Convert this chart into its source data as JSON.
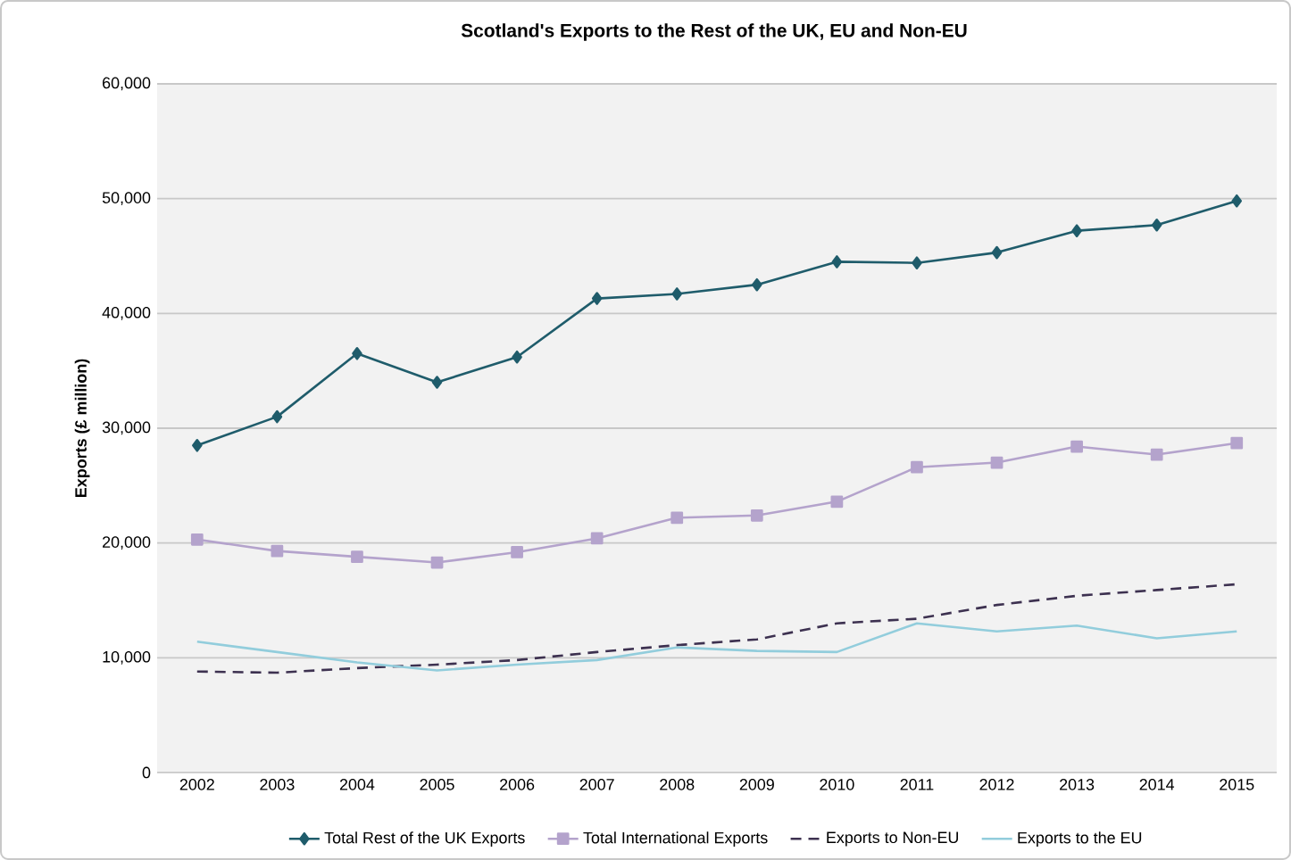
{
  "chart_data": {
    "type": "line",
    "title": "Scotland's Exports to the Rest of the UK, EU and Non-EU",
    "ylabel": "Exports (£ million)",
    "categories": [
      "2002",
      "2003",
      "2004",
      "2005",
      "2006",
      "2007",
      "2008",
      "2009",
      "2010",
      "2011",
      "2012",
      "2013",
      "2014",
      "2015"
    ],
    "series": [
      {
        "name": "Total Rest of the UK Exports",
        "color": "#1f5c6b",
        "marker": "diamond",
        "line_style": "solid",
        "values": [
          28500,
          31000,
          36500,
          34000,
          36200,
          41300,
          41700,
          42500,
          44500,
          44400,
          45300,
          47200,
          47700,
          49800
        ]
      },
      {
        "name": "Total International Exports",
        "color": "#b4a3cc",
        "marker": "square",
        "line_style": "solid",
        "values": [
          20300,
          19300,
          18800,
          18300,
          19200,
          20400,
          22200,
          22400,
          23600,
          26600,
          27000,
          28400,
          27700,
          28700
        ]
      },
      {
        "name": "Exports to Non-EU",
        "color": "#3d3150",
        "marker": "none",
        "line_style": "dashed",
        "values": [
          8800,
          8700,
          9100,
          9400,
          9800,
          10500,
          11100,
          11600,
          13000,
          13400,
          14600,
          15400,
          15900,
          16400
        ]
      },
      {
        "name": "Exports to the EU",
        "color": "#92cddc",
        "marker": "none",
        "line_style": "solid",
        "values": [
          11400,
          10500,
          9600,
          8900,
          9400,
          9800,
          10900,
          10600,
          10500,
          13000,
          12300,
          12800,
          11700,
          12300
        ]
      }
    ],
    "ylim": [
      0,
      60000
    ],
    "yticks": [
      0,
      {
        "value": 10000,
        "label": "10,000"
      },
      {
        "value": 20000,
        "label": "20,000"
      },
      {
        "value": 30000,
        "label": "30,000"
      },
      {
        "value": 40000,
        "label": "40,000"
      },
      {
        "value": 50000,
        "label": "50,000"
      },
      {
        "value": 60000,
        "label": "60,000"
      }
    ],
    "grid": "y",
    "legend": "bottom"
  }
}
